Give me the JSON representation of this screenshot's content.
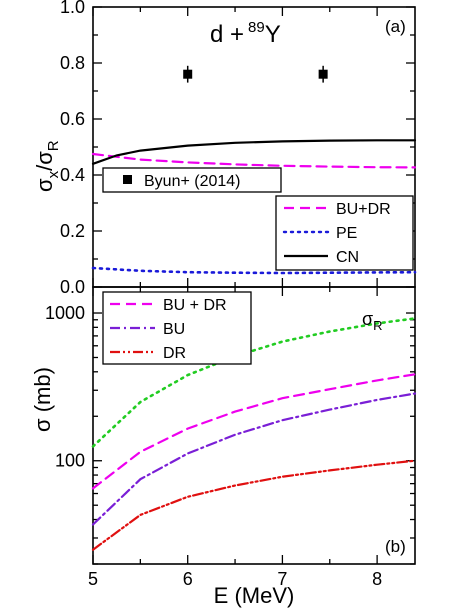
{
  "chart_data": [
    {
      "type": "line",
      "panel_label": "(a)",
      "title": "d + ⁸⁹Y",
      "title_main": "d +",
      "title_sup": "89",
      "title_tail": "Y",
      "ylabel": "σx/σR",
      "ylabel_sigma": "σ",
      "ylabel_sub_x": "x",
      "ylabel_slash": "/σ",
      "ylabel_sub_R": "R",
      "xlim": [
        5,
        8.4
      ],
      "ylim": [
        0.0,
        1.0
      ],
      "yticks": [
        "0.0",
        "0.2",
        "0.4",
        "0.6",
        "0.8",
        "1.0"
      ],
      "series": [
        {
          "name": "BU+DR",
          "color": "#ee00ee",
          "style": "dashed",
          "x": [
            5.0,
            5.5,
            6.0,
            6.5,
            7.0,
            7.5,
            8.0,
            8.4
          ],
          "y": [
            0.475,
            0.455,
            0.445,
            0.438,
            0.433,
            0.43,
            0.428,
            0.427
          ]
        },
        {
          "name": "PE",
          "color": "#1a1ad9",
          "style": "dotted",
          "x": [
            5.0,
            5.5,
            6.0,
            6.5,
            7.0,
            7.5,
            8.0,
            8.4
          ],
          "y": [
            0.068,
            0.058,
            0.053,
            0.051,
            0.05,
            0.051,
            0.052,
            0.053
          ]
        },
        {
          "name": "CN",
          "color": "#000000",
          "style": "solid",
          "x": [
            5.0,
            5.25,
            5.5,
            6.0,
            6.5,
            7.0,
            7.5,
            8.0,
            8.4
          ],
          "y": [
            0.44,
            0.47,
            0.487,
            0.505,
            0.515,
            0.52,
            0.523,
            0.524,
            0.524
          ]
        }
      ],
      "points": {
        "name": "Byun+ (2014)",
        "x": [
          6.0,
          7.43
        ],
        "y": [
          0.76,
          0.76
        ],
        "yerr": [
          0.03,
          0.03
        ]
      }
    },
    {
      "type": "line",
      "panel_label": "(b)",
      "xlabel": "E (MeV)",
      "ylabel": "σ (mb)",
      "yscale": "log",
      "xlim": [
        5,
        8.4
      ],
      "ylim": [
        20,
        1500
      ],
      "xticks": [
        "5",
        "6",
        "7",
        "8"
      ],
      "yticks": [
        "100",
        "1000"
      ],
      "curve_label": "σR",
      "curve_label_sigma": "σ",
      "curve_label_sub": "R",
      "series": [
        {
          "name": "BU + DR",
          "color": "#ee00ee",
          "style": "dashed",
          "x": [
            5.0,
            5.5,
            6.0,
            6.5,
            7.0,
            7.5,
            8.0,
            8.4
          ],
          "y": [
            65,
            115,
            165,
            215,
            265,
            305,
            350,
            385
          ]
        },
        {
          "name": "BU",
          "color": "#7a1fd6",
          "style": "dashdot",
          "x": [
            5.0,
            5.5,
            6.0,
            6.5,
            7.0,
            7.5,
            8.0,
            8.4
          ],
          "y": [
            37,
            75,
            112,
            150,
            188,
            222,
            258,
            285
          ]
        },
        {
          "name": "DR",
          "color": "#e01010",
          "style": "dashdotdot",
          "x": [
            5.0,
            5.5,
            6.0,
            6.5,
            7.0,
            7.5,
            8.0,
            8.4
          ],
          "y": [
            25,
            43,
            57,
            68,
            78,
            86,
            94,
            100
          ]
        },
        {
          "name": "σR",
          "color": "#22cc22",
          "style": "dotted",
          "x": [
            5.0,
            5.5,
            6.0,
            6.5,
            7.0,
            7.5,
            8.0,
            8.4
          ],
          "y": [
            125,
            250,
            380,
            510,
            640,
            750,
            850,
            920
          ]
        }
      ]
    }
  ]
}
